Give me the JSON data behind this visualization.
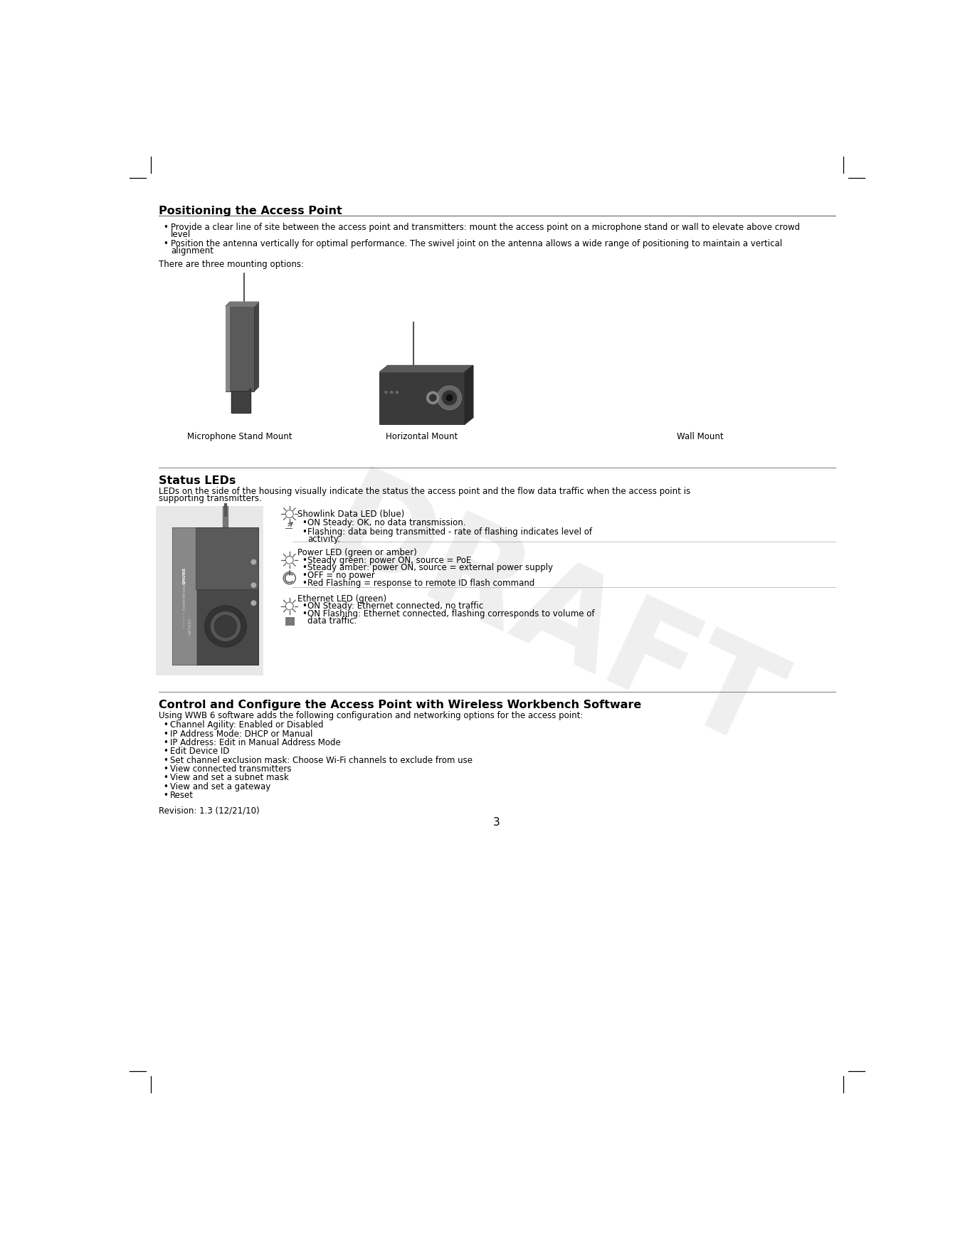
{
  "bg_color": "#ffffff",
  "page_number": "3",
  "revision": "Revision: 1.3 (12/21/10)",
  "title1": "Positioning the Access Point",
  "bullet1a": "Provide a clear line of site between the access point and transmitters: mount the access point on a microphone stand or wall to elevate above crowd\nlevel",
  "bullet1b_line1": "Position the antenna vertically for optimal performance. The swivel joint on the antenna allows a wide range of positioning to maintain a vertical",
  "bullet1b_line2": "alignment",
  "mounting_intro": "There are three mounting options:",
  "mount1": "Microphone Stand Mount",
  "mount2": "Horizontal Mount",
  "mount3": "Wall Mount",
  "title2": "Status LEDs",
  "status_intro_line1": "LEDs on the side of the housing visually indicate the status the access point and the flow data traffic when the access point is",
  "status_intro_line2": "supporting transmitters.",
  "led1_title": "Showlink Data LED (blue)",
  "led1_b1": "ON Steady: OK, no data transmission.",
  "led1_b2_line1": "Flashing: data being transmitted - rate of flashing indicates level of",
  "led1_b2_line2": "activity.",
  "led2_title": "Power LED (green or amber)",
  "led2_b1": "Steady green: power ON, source = PoE",
  "led2_b2": "Steady amber: power ON, source = external power supply",
  "led2_b3": "OFF = no power",
  "led2_b4": "Red Flashing = response to remote ID flash command",
  "led3_title": "Ethernet LED (green)",
  "led3_b1": "ON Steady: Ethernet connected, no traffic",
  "led3_b2_line1": "ON Flashing: Ethernet connected, flashing corresponds to volume of",
  "led3_b2_line2": "data traffic.",
  "title3": "Control and Configure the Access Point with Wireless Workbench Software",
  "wwb_intro": "Using WWB 6 software adds the following configuration and networking options for the access point:",
  "wwb_bullets": [
    "Channel Agility: Enabled or Disabled",
    "IP Address Mode: DHCP or Manual",
    "IP Address: Edit in Manual Address Mode",
    "Edit Device ID",
    "Set channel exclusion mask: Choose Wi-Fi channels to exclude from use",
    "View connected transmitters",
    "View and set a subnet mask",
    "View and set a gateway",
    "Reset"
  ],
  "draft_color": "#c8c8c8",
  "line_color": "#888888",
  "title_size": 11.5,
  "body_size": 8.5,
  "small_size": 7.5
}
